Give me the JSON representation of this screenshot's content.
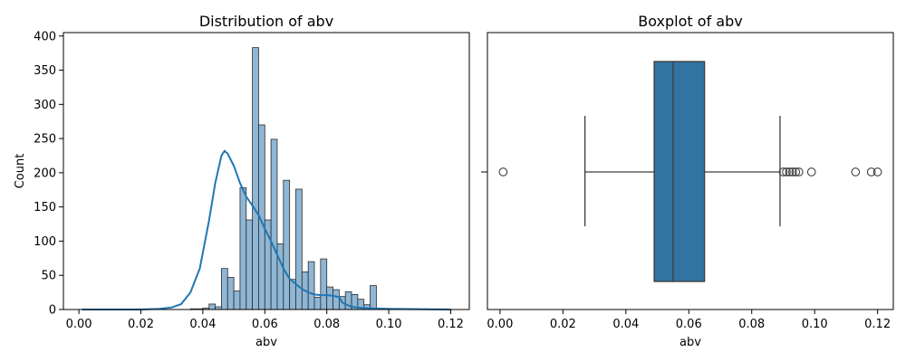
{
  "colors": {
    "bar_fill": "#8fb6d5",
    "bar_edge": "#2b2b2b",
    "kde_line": "#1f77b4",
    "box_fill": "#3274a1",
    "whisker": "#3d3d3d"
  },
  "chart_data": [
    {
      "type": "histogram",
      "title": "Distribution of abv",
      "xlabel": "abv",
      "ylabel": "Count",
      "xlim": [
        -0.005,
        0.126
      ],
      "ylim": [
        0,
        405
      ],
      "x_ticks": [
        "0.00",
        "0.02",
        "0.04",
        "0.06",
        "0.08",
        "0.10",
        "0.12"
      ],
      "x_tick_values": [
        0.0,
        0.02,
        0.04,
        0.06,
        0.08,
        0.1,
        0.12
      ],
      "y_ticks": [
        "0",
        "50",
        "100",
        "150",
        "200",
        "250",
        "300",
        "350",
        "400"
      ],
      "y_tick_values": [
        0,
        50,
        100,
        150,
        200,
        250,
        300,
        350,
        400
      ],
      "bin_width": 0.002,
      "bins": [
        {
          "x0": 0.026,
          "count": 1
        },
        {
          "x0": 0.028,
          "count": 1
        },
        {
          "x0": 0.03,
          "count": 2
        },
        {
          "x0": 0.032,
          "count": 8
        },
        {
          "x0": 0.034,
          "count": 4
        },
        {
          "x0": 0.036,
          "count": 60
        },
        {
          "x0": 0.038,
          "count": 47
        },
        {
          "x0": 0.04,
          "count": 27
        },
        {
          "x0": 0.042,
          "count": 178
        },
        {
          "x0": 0.044,
          "count": 131
        },
        {
          "x0": 0.046,
          "count": 383
        },
        {
          "x0": 0.048,
          "count": 270
        },
        {
          "x0": 0.05,
          "count": 131
        },
        {
          "x0": 0.052,
          "count": 249
        },
        {
          "x0": 0.054,
          "count": 96
        },
        {
          "x0": 0.056,
          "count": 189
        },
        {
          "x0": 0.058,
          "count": 44
        },
        {
          "x0": 0.06,
          "count": 176
        },
        {
          "x0": 0.062,
          "count": 55
        },
        {
          "x0": 0.064,
          "count": 70
        },
        {
          "x0": 0.066,
          "count": 18
        },
        {
          "x0": 0.068,
          "count": 74
        },
        {
          "x0": 0.07,
          "count": 33
        },
        {
          "x0": 0.072,
          "count": 29
        },
        {
          "x0": 0.074,
          "count": 19
        },
        {
          "x0": 0.076,
          "count": 26
        },
        {
          "x0": 0.078,
          "count": 22
        },
        {
          "x0": 0.08,
          "count": 15
        },
        {
          "x0": 0.082,
          "count": 7
        },
        {
          "x0": 0.084,
          "count": 35
        }
      ],
      "kde": [
        [
          0.001,
          0
        ],
        [
          0.02,
          0
        ],
        [
          0.026,
          1
        ],
        [
          0.03,
          3
        ],
        [
          0.033,
          8
        ],
        [
          0.036,
          25
        ],
        [
          0.039,
          60
        ],
        [
          0.042,
          130
        ],
        [
          0.044,
          185
        ],
        [
          0.046,
          225
        ],
        [
          0.047,
          232
        ],
        [
          0.048,
          228
        ],
        [
          0.05,
          210
        ],
        [
          0.052,
          185
        ],
        [
          0.054,
          165
        ],
        [
          0.056,
          152
        ],
        [
          0.058,
          138
        ],
        [
          0.06,
          118
        ],
        [
          0.062,
          100
        ],
        [
          0.064,
          80
        ],
        [
          0.066,
          60
        ],
        [
          0.068,
          45
        ],
        [
          0.07,
          37
        ],
        [
          0.072,
          30
        ],
        [
          0.074,
          25
        ],
        [
          0.076,
          22
        ],
        [
          0.078,
          21
        ],
        [
          0.08,
          21
        ],
        [
          0.082,
          20
        ],
        [
          0.084,
          18
        ],
        [
          0.085,
          10
        ],
        [
          0.088,
          4
        ],
        [
          0.092,
          2
        ],
        [
          0.1,
          1
        ],
        [
          0.12,
          0
        ]
      ]
    },
    {
      "type": "boxplot",
      "title": "Boxplot of abv",
      "xlabel": "abv",
      "xlim": [
        -0.004,
        0.125
      ],
      "x_ticks": [
        "0.00",
        "0.02",
        "0.04",
        "0.06",
        "0.08",
        "0.10",
        "0.12"
      ],
      "x_tick_values": [
        0.0,
        0.02,
        0.04,
        0.06,
        0.08,
        0.1,
        0.12
      ],
      "q1": 0.049,
      "median": 0.055,
      "q3": 0.065,
      "whisker_low": 0.027,
      "whisker_high": 0.089,
      "outliers": [
        0.001,
        0.09,
        0.091,
        0.092,
        0.093,
        0.094,
        0.095,
        0.099,
        0.113,
        0.118,
        0.12
      ]
    }
  ]
}
